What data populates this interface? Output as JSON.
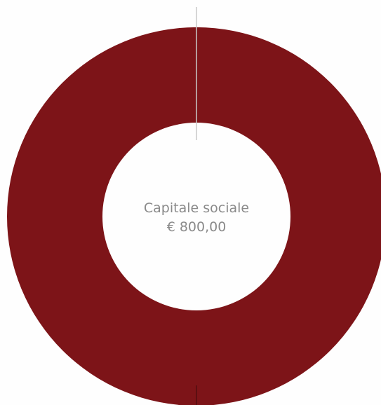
{
  "chart_data": {
    "type": "pie",
    "variant": "donut",
    "labels": [
      ""
    ],
    "values": [
      800
    ],
    "colors": [
      "#7d1418"
    ],
    "center_label": "Capitale sociale",
    "center_value": "€ 800,00"
  }
}
